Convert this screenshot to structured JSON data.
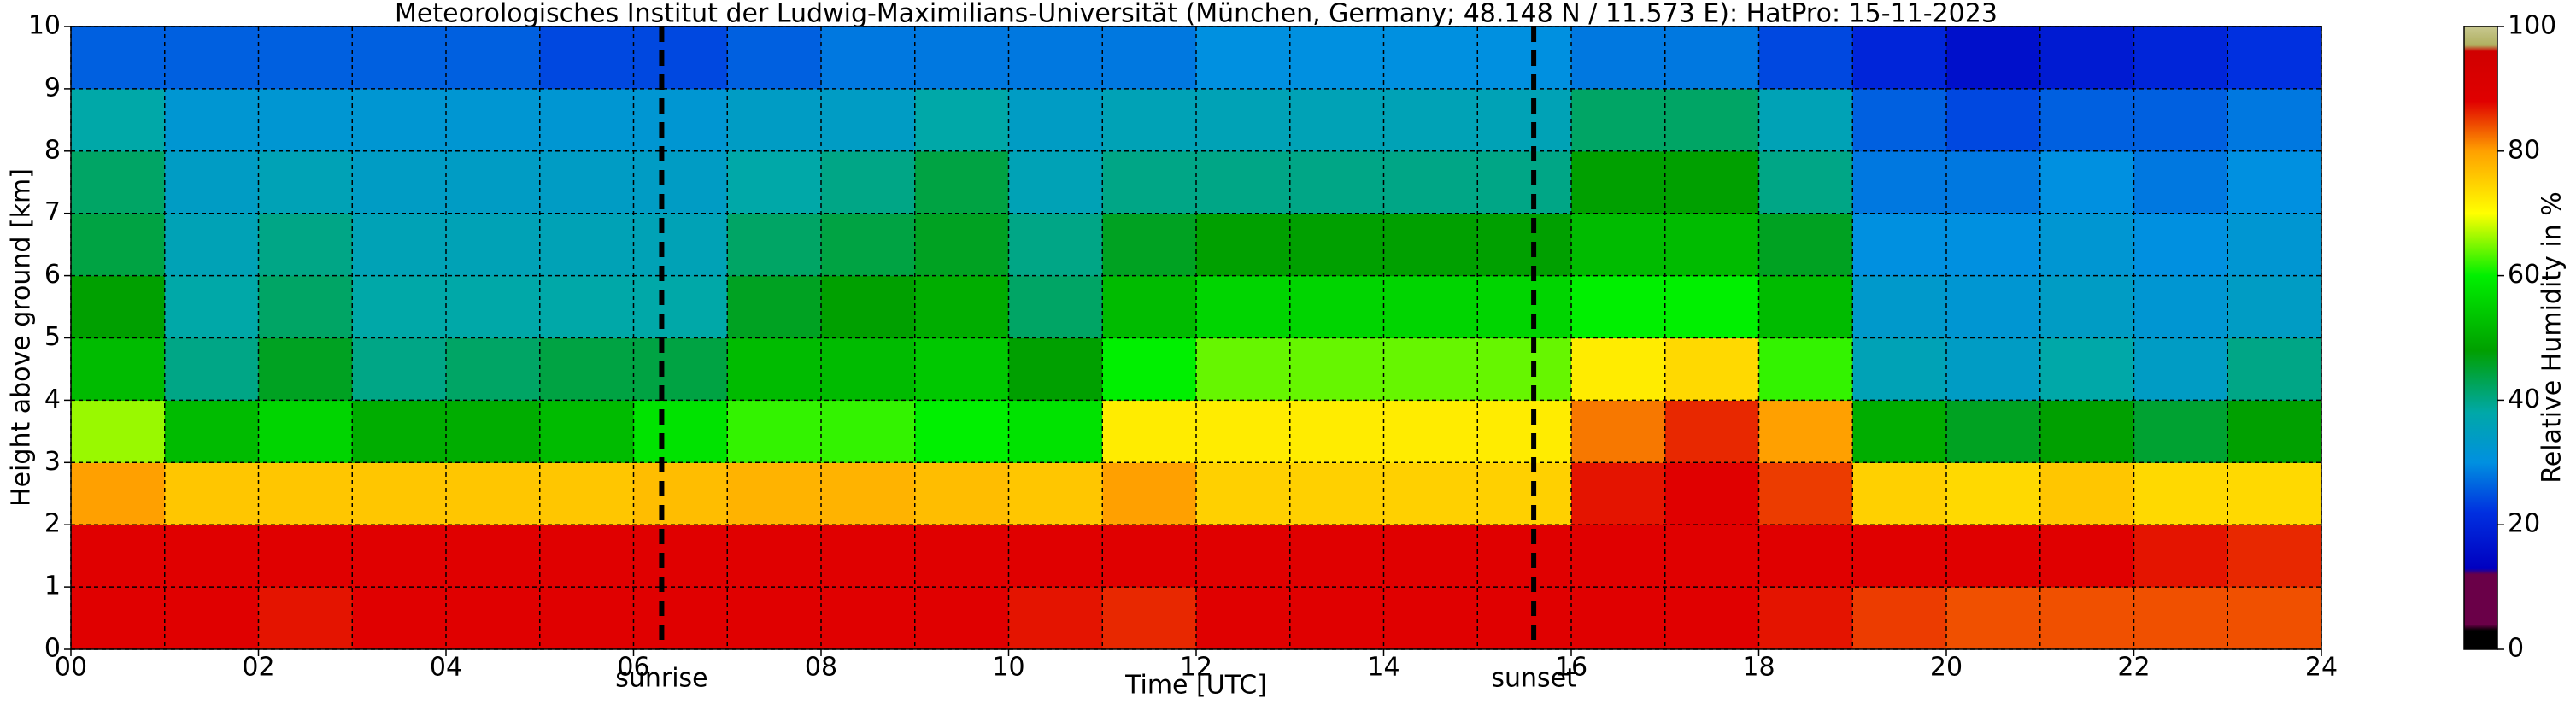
{
  "chart_data": {
    "type": "heatmap",
    "title": "Meteorologisches Institut der Ludwig-Maximilians-Universität (München, Germany; 48.148 N / 11.573 E):    HatPro: 15-11-2023",
    "x_label": "Time [UTC]",
    "y_label": "Height above ground [km]",
    "colorbar_label": "Relative Humidity in %",
    "xbins": [
      0,
      1,
      2,
      3,
      4,
      5,
      6,
      7,
      8,
      9,
      10,
      11,
      12,
      13,
      14,
      15,
      16,
      17,
      18,
      19,
      20,
      21,
      22,
      23,
      24
    ],
    "ybins": [
      0,
      1,
      2,
      3,
      4,
      5,
      6,
      7,
      8,
      9,
      10
    ],
    "z": [
      [
        88,
        88,
        87,
        88,
        88,
        88,
        88,
        88,
        88,
        88,
        87,
        86,
        88,
        88,
        88,
        88,
        88,
        88,
        87,
        85,
        84,
        84,
        84,
        84
      ],
      [
        88,
        88,
        88,
        88,
        88,
        88,
        88,
        88,
        88,
        88,
        88,
        88,
        88,
        88,
        88,
        88,
        88,
        88,
        88,
        88,
        88,
        88,
        87,
        86
      ],
      [
        80,
        76,
        76,
        76,
        76,
        76,
        77,
        78,
        78,
        77,
        76,
        80,
        75,
        75,
        75,
        75,
        87,
        88,
        85,
        75,
        74,
        76,
        74,
        74
      ],
      [
        66,
        52,
        56,
        50,
        50,
        52,
        58,
        62,
        62,
        60,
        58,
        72,
        72,
        72,
        72,
        72,
        82,
        86,
        80,
        50,
        46,
        48,
        45,
        48
      ],
      [
        52,
        40,
        46,
        40,
        42,
        44,
        44,
        52,
        52,
        54,
        48,
        60,
        64,
        64,
        64,
        64,
        72,
        74,
        62,
        36,
        34,
        38,
        34,
        40
      ],
      [
        48,
        38,
        42,
        38,
        38,
        38,
        38,
        46,
        48,
        50,
        42,
        52,
        56,
        56,
        56,
        56,
        60,
        60,
        52,
        33,
        32,
        34,
        32,
        34
      ],
      [
        44,
        36,
        40,
        36,
        36,
        36,
        36,
        42,
        44,
        46,
        40,
        46,
        48,
        48,
        48,
        48,
        52,
        52,
        46,
        30,
        30,
        32,
        30,
        32
      ],
      [
        42,
        34,
        36,
        34,
        34,
        34,
        34,
        38,
        40,
        44,
        36,
        40,
        40,
        40,
        40,
        40,
        48,
        48,
        40,
        28,
        28,
        30,
        28,
        30
      ],
      [
        38,
        32,
        32,
        32,
        32,
        32,
        32,
        34,
        34,
        38,
        34,
        36,
        36,
        36,
        36,
        36,
        42,
        42,
        36,
        26,
        24,
        26,
        26,
        28
      ],
      [
        26,
        26,
        26,
        26,
        26,
        24,
        24,
        26,
        28,
        28,
        28,
        28,
        30,
        30,
        30,
        30,
        28,
        28,
        24,
        20,
        16,
        18,
        20,
        22
      ]
    ],
    "xlim": [
      0,
      24
    ],
    "ylim": [
      0,
      10
    ],
    "xticks": [
      {
        "value": 0,
        "label": "00"
      },
      {
        "value": 2,
        "label": "02"
      },
      {
        "value": 4,
        "label": "04"
      },
      {
        "value": 6,
        "label": "06"
      },
      {
        "value": 8,
        "label": "08"
      },
      {
        "value": 10,
        "label": "10"
      },
      {
        "value": 12,
        "label": "12"
      },
      {
        "value": 14,
        "label": "14"
      },
      {
        "value": 16,
        "label": "16"
      },
      {
        "value": 18,
        "label": "18"
      },
      {
        "value": 20,
        "label": "20"
      },
      {
        "value": 22,
        "label": "22"
      },
      {
        "value": 24,
        "label": "24"
      }
    ],
    "xminor": [
      1,
      3,
      5,
      7,
      9,
      11,
      13,
      15,
      17,
      19,
      21,
      23
    ],
    "yticks": [
      0,
      1,
      2,
      3,
      4,
      5,
      6,
      7,
      8,
      9,
      10
    ],
    "grid": true,
    "annotations": [
      {
        "x": 6.3,
        "text": "sunrise"
      },
      {
        "x": 15.6,
        "text": "sunset"
      }
    ],
    "clim": [
      0,
      100
    ],
    "cticks": [
      0,
      20,
      40,
      60,
      80,
      100
    ],
    "colorscale": [
      {
        "value": 0,
        "color": "#000000"
      },
      {
        "value": 3,
        "color": "#000000"
      },
      {
        "value": 4,
        "color": "#6a0048"
      },
      {
        "value": 12,
        "color": "#6a0048"
      },
      {
        "value": 13,
        "color": "#0000c0"
      },
      {
        "value": 22,
        "color": "#0030e0"
      },
      {
        "value": 30,
        "color": "#0090e0"
      },
      {
        "value": 38,
        "color": "#00a8a8"
      },
      {
        "value": 48,
        "color": "#00a000"
      },
      {
        "value": 60,
        "color": "#00f000"
      },
      {
        "value": 70,
        "color": "#ffff00"
      },
      {
        "value": 80,
        "color": "#ffa000"
      },
      {
        "value": 88,
        "color": "#e00000"
      },
      {
        "value": 96,
        "color": "#d00000"
      },
      {
        "value": 97,
        "color": "#b0b060"
      },
      {
        "value": 100,
        "color": "#c8c890"
      }
    ]
  }
}
